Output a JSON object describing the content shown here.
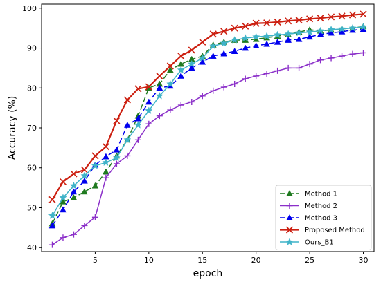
{
  "chart_data": {
    "type": "line",
    "xlabel": "epoch",
    "ylabel": "Accuracy (%)",
    "xlim": [
      0,
      31
    ],
    "ylim": [
      39,
      101
    ],
    "xticks": [
      5,
      10,
      15,
      20,
      25,
      30
    ],
    "yticks": [
      40,
      50,
      60,
      70,
      80,
      90,
      100
    ],
    "grid": false,
    "legend_position": "bottom-right",
    "x": [
      1,
      2,
      3,
      4,
      5,
      6,
      7,
      8,
      9,
      10,
      11,
      12,
      13,
      14,
      15,
      16,
      17,
      18,
      19,
      20,
      21,
      22,
      23,
      24,
      25,
      26,
      27,
      28,
      29,
      30
    ],
    "series": [
      {
        "name": "Method 1",
        "color": "#1f7a1f",
        "dash": "8,4",
        "marker": "triangle",
        "values": [
          46,
          51.5,
          52.5,
          54,
          55.5,
          59,
          63,
          67,
          73,
          80,
          81,
          84.5,
          86,
          87.2,
          88,
          90.8,
          91.5,
          92,
          92,
          92.2,
          92.6,
          93,
          93.4,
          94,
          94.6,
          94.3,
          94.5,
          94.8,
          95,
          95.4
        ]
      },
      {
        "name": "Method 2",
        "color": "#8b2fc9",
        "dash": "",
        "marker": "plus",
        "values": [
          40.7,
          42.5,
          43.3,
          45.5,
          47.6,
          57.5,
          61,
          63,
          67,
          71,
          73,
          74.5,
          75.7,
          76.5,
          78,
          79.3,
          80.2,
          81,
          82.3,
          83,
          83.6,
          84.3,
          85,
          85,
          86,
          87,
          87.5,
          88,
          88.5,
          88.8
        ]
      },
      {
        "name": "Method 3",
        "color": "#0000ee",
        "dash": "8,4",
        "marker": "triangle",
        "values": [
          45.5,
          49.5,
          54,
          56.7,
          60.7,
          62.8,
          64.5,
          70.7,
          72.3,
          76.5,
          80,
          80.5,
          83,
          85,
          86.5,
          88,
          88.6,
          89.2,
          90,
          90.6,
          91,
          91.5,
          92,
          92.2,
          92.8,
          93.4,
          93.8,
          94.1,
          94.5,
          94.7
        ]
      },
      {
        "name": "Proposed Method",
        "color": "#cc1f10",
        "dash": "",
        "marker": "x",
        "values": [
          52,
          56.5,
          58.5,
          59.5,
          63,
          65.3,
          71.8,
          77,
          79.8,
          80.3,
          83,
          85.5,
          88,
          89.5,
          91.5,
          93.5,
          94.2,
          95,
          95.5,
          96.2,
          96.3,
          96.5,
          96.8,
          97,
          97.3,
          97.5,
          97.8,
          98,
          98.3,
          98.5
        ]
      },
      {
        "name": "Ours_B1",
        "color": "#3fb3c8",
        "dash": "",
        "marker": "star",
        "values": [
          48,
          52.5,
          55.5,
          58,
          60.5,
          61.3,
          62.5,
          67,
          70.7,
          74.3,
          78,
          81,
          84.5,
          86,
          87.5,
          90.5,
          91.2,
          92,
          92.5,
          92.8,
          93,
          93.3,
          93.5,
          93.8,
          94,
          94.3,
          94.6,
          94.8,
          95,
          95.3
        ]
      }
    ]
  }
}
